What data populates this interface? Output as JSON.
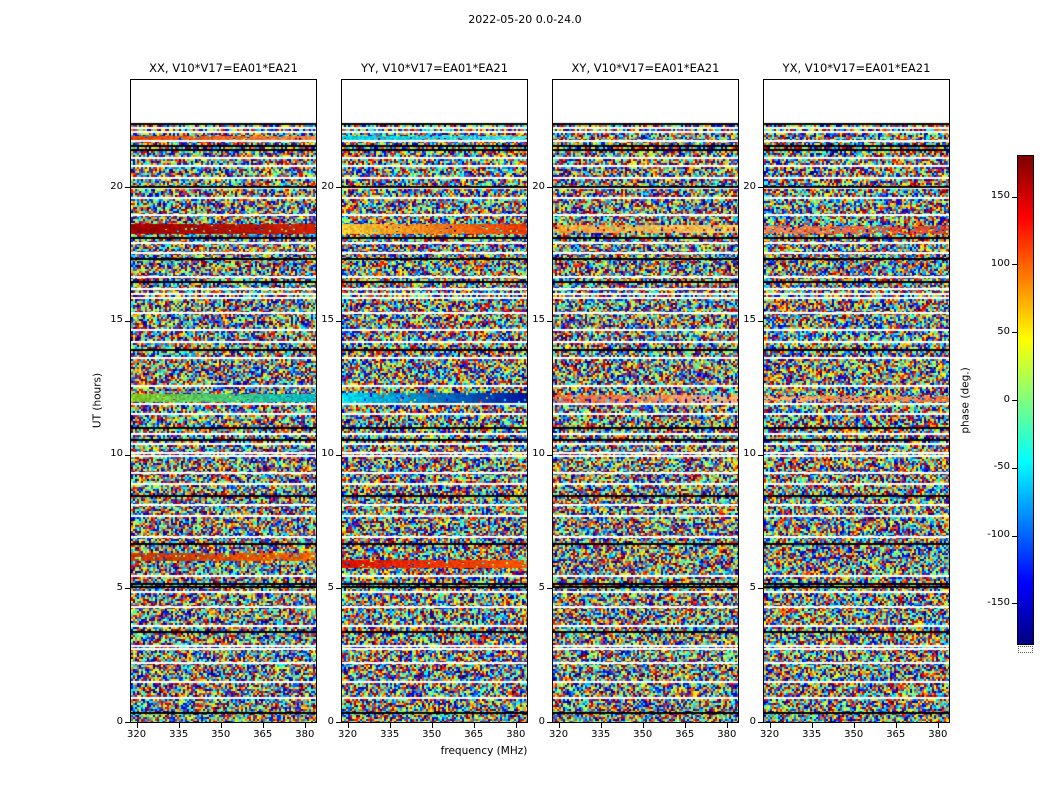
{
  "figure_title": "2022-05-20 0.0-24.0",
  "chart_data": {
    "type": "heatmap",
    "title": "2022-05-20 0.0-24.0",
    "baseline": "V10*V17=EA01*EA21",
    "subplots": [
      {
        "polarization": "XX",
        "title": "XX, V10*V17=EA01*EA21"
      },
      {
        "polarization": "YY",
        "title": "YY, V10*V17=EA01*EA21"
      },
      {
        "polarization": "XY",
        "title": "XY, V10*V17=EA01*EA21"
      },
      {
        "polarization": "YX",
        "title": "YX, V10*V17=EA01*EA21"
      }
    ],
    "xlabel": "frequency (MHz)",
    "ylabel": "UT (hours)",
    "x_ticks": [
      320,
      335,
      350,
      365,
      380
    ],
    "y_ticks": [
      0,
      5,
      10,
      15,
      20
    ],
    "x_range_mhz": [
      318,
      384
    ],
    "y_range_hours": [
      0,
      24
    ],
    "data_extent_hours": [
      0,
      22.4
    ],
    "values_description": "Interferometric visibility phase per (frequency, time) pixel; appears as uniformly distributed random noise over [-180, 180] degrees. Horizontal white rows are flagged/missing time samples, black rows are near -180/180 deg times, and a few coherent colored bands mark times of correlated phase (e.g. ~18.4h, ~12.1h, ~6h UT). Region above ~22.4h UT contains no data.",
    "colorbar": {
      "label": "phase (deg.)",
      "ticks": [
        150,
        100,
        50,
        0,
        -50,
        -100,
        -150
      ],
      "vmin": -180,
      "vmax": 180,
      "colormap": "jet"
    },
    "flagged_time_rows_hours": [
      22.2,
      22.05,
      21.72,
      21.1,
      20.8,
      20.35,
      19.95,
      19.6,
      18.95,
      17.9,
      17.55,
      16.65,
      16.2,
      16.0,
      15.85,
      15.3,
      14.65,
      14.2,
      13.6,
      12.55,
      11.9,
      11.5,
      10.75,
      10.4,
      10.05,
      9.95,
      9.3,
      8.9,
      8.1,
      7.7,
      6.9,
      5.45,
      4.85,
      4.3,
      3.6,
      2.85,
      2.72,
      2.2,
      1.5,
      0.9
    ],
    "dark_time_rows_hours": [
      22.35,
      21.55,
      21.4,
      20.0,
      18.1,
      17.3,
      16.45,
      13.9,
      11.0,
      10.55,
      8.45,
      6.65,
      5.15,
      5.05,
      3.35,
      0.35
    ],
    "coherent_bands": {
      "XX": [
        {
          "hour": 21.85,
          "width_hours": 0.12,
          "color_left": "#dd4400",
          "color_right": "#ee8844",
          "strength": 0.9
        },
        {
          "hour": 18.42,
          "width_hours": 0.38,
          "color_left": "#990000",
          "color_right": "#cc2200",
          "strength": 0.95
        },
        {
          "hour": 12.1,
          "width_hours": 0.3,
          "color_left": "#88cc22",
          "color_right": "#00bbcc",
          "strength": 0.95
        },
        {
          "hour": 6.2,
          "width_hours": 0.25,
          "color_left": "#cc3300",
          "color_right": "#ee6600",
          "strength": 0.85
        }
      ],
      "YY": [
        {
          "hour": 21.85,
          "width_hours": 0.12,
          "color_left": "#00ccdd",
          "color_right": "#44ddee",
          "strength": 0.9
        },
        {
          "hour": 18.42,
          "width_hours": 0.38,
          "color_left": "#ffcc33",
          "color_right": "#ee3300",
          "strength": 0.95
        },
        {
          "hour": 12.1,
          "width_hours": 0.4,
          "color_left": "#00ddee",
          "color_right": "#001199",
          "strength": 0.95
        },
        {
          "hour": 5.9,
          "width_hours": 0.3,
          "color_left": "#dd1100",
          "color_right": "#ff5500",
          "strength": 0.92
        }
      ],
      "XY": [
        {
          "hour": 18.42,
          "width_hours": 0.3,
          "color_left": "#ff9933",
          "color_right": "#ffcc66",
          "strength": 0.75
        },
        {
          "hour": 12.1,
          "width_hours": 0.25,
          "color_left": "#ee6644",
          "color_right": "#ffaa77",
          "strength": 0.7
        }
      ],
      "YX": [
        {
          "hour": 18.42,
          "width_hours": 0.25,
          "color_left": "#ee8855",
          "color_right": "#cc4433",
          "strength": 0.7
        },
        {
          "hour": 12.1,
          "width_hours": 0.2,
          "color_left": "#ffaa66",
          "color_right": "#ee7744",
          "strength": 0.65
        }
      ]
    }
  }
}
